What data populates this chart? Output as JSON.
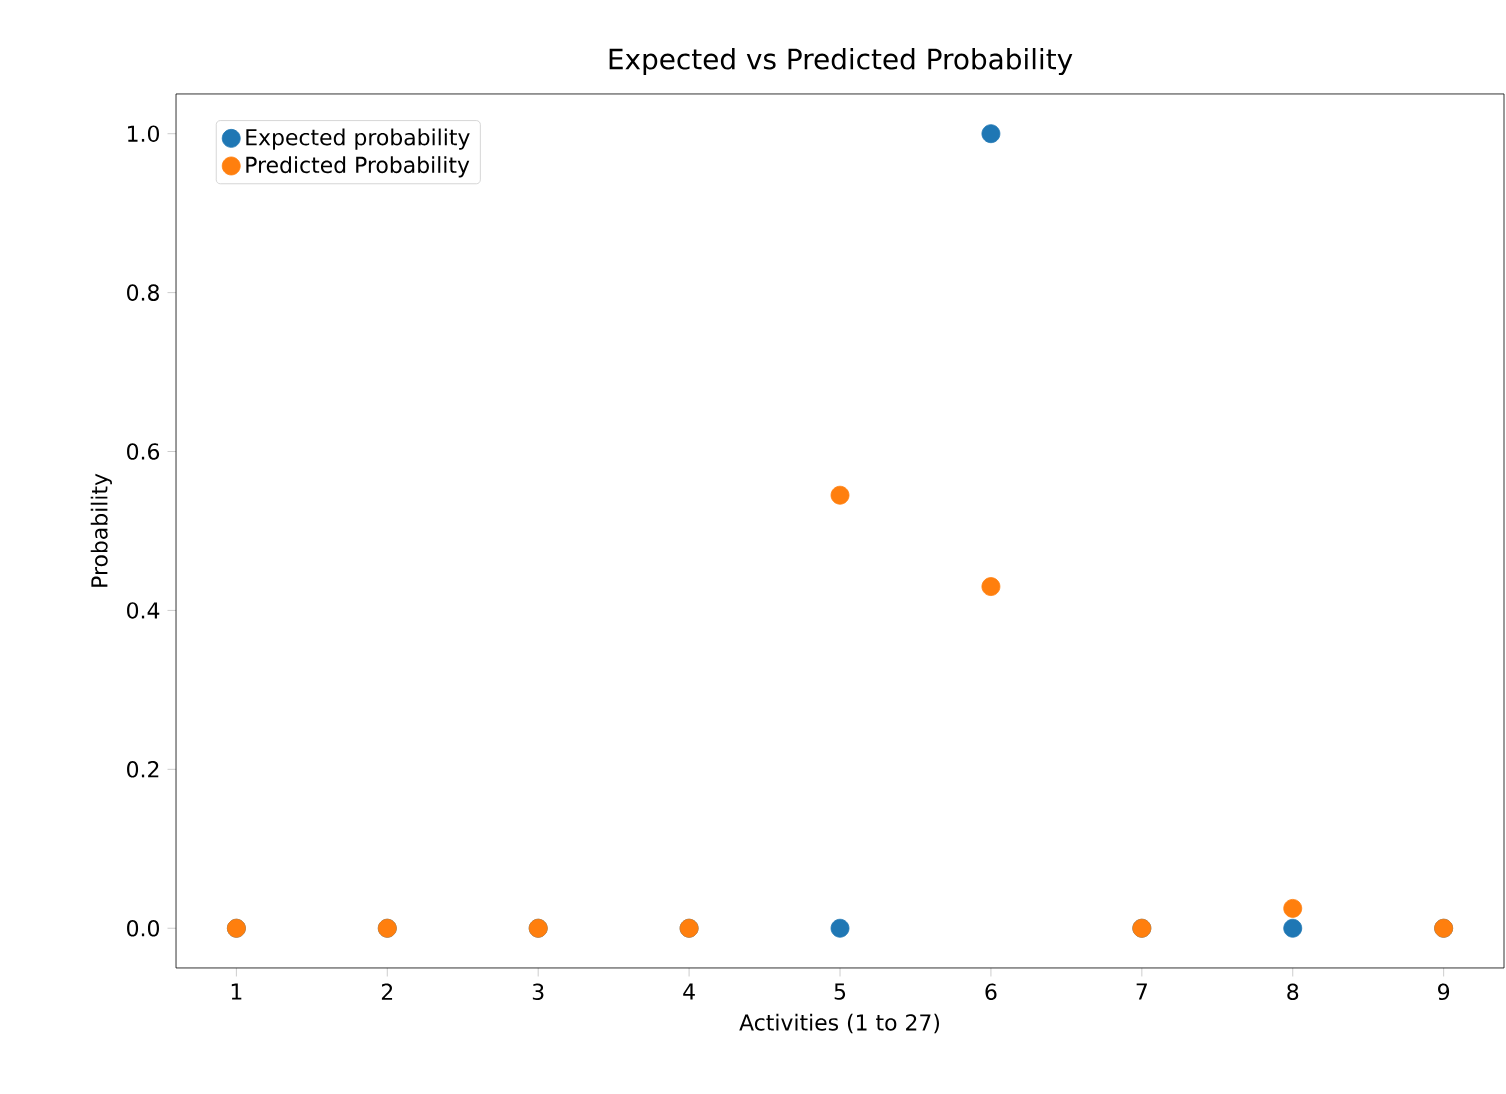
{
  "chart_data": {
    "type": "scatter",
    "title": "Expected vs Predicted Probability",
    "xlabel": "Activities (1 to 27)",
    "ylabel": "Probability",
    "x": [
      1,
      2,
      3,
      4,
      5,
      6,
      7,
      8,
      9
    ],
    "series": [
      {
        "name": "Expected probability",
        "color": "#1f77b4",
        "values": [
          0,
          0,
          0,
          0,
          0,
          1,
          0,
          0,
          0
        ]
      },
      {
        "name": "Predicted Probability",
        "color": "#ff7f0e",
        "values": [
          0,
          0,
          0,
          0,
          0.545,
          0.43,
          0,
          0.025,
          0
        ]
      }
    ],
    "xlim": [
      0.6,
      9.4
    ],
    "ylim": [
      -0.05,
      1.05
    ],
    "xticks": [
      1,
      2,
      3,
      4,
      5,
      6,
      7,
      8,
      9
    ],
    "yticks": [
      {
        "value": 0,
        "label": "0.0"
      },
      {
        "value": 0.2,
        "label": "0.2"
      },
      {
        "value": 0.4,
        "label": "0.4"
      },
      {
        "value": 0.6,
        "label": "0.6"
      },
      {
        "value": 0.8,
        "label": "0.8"
      },
      {
        "value": 1,
        "label": "1.0"
      }
    ],
    "legend": "top left",
    "grid": false
  }
}
